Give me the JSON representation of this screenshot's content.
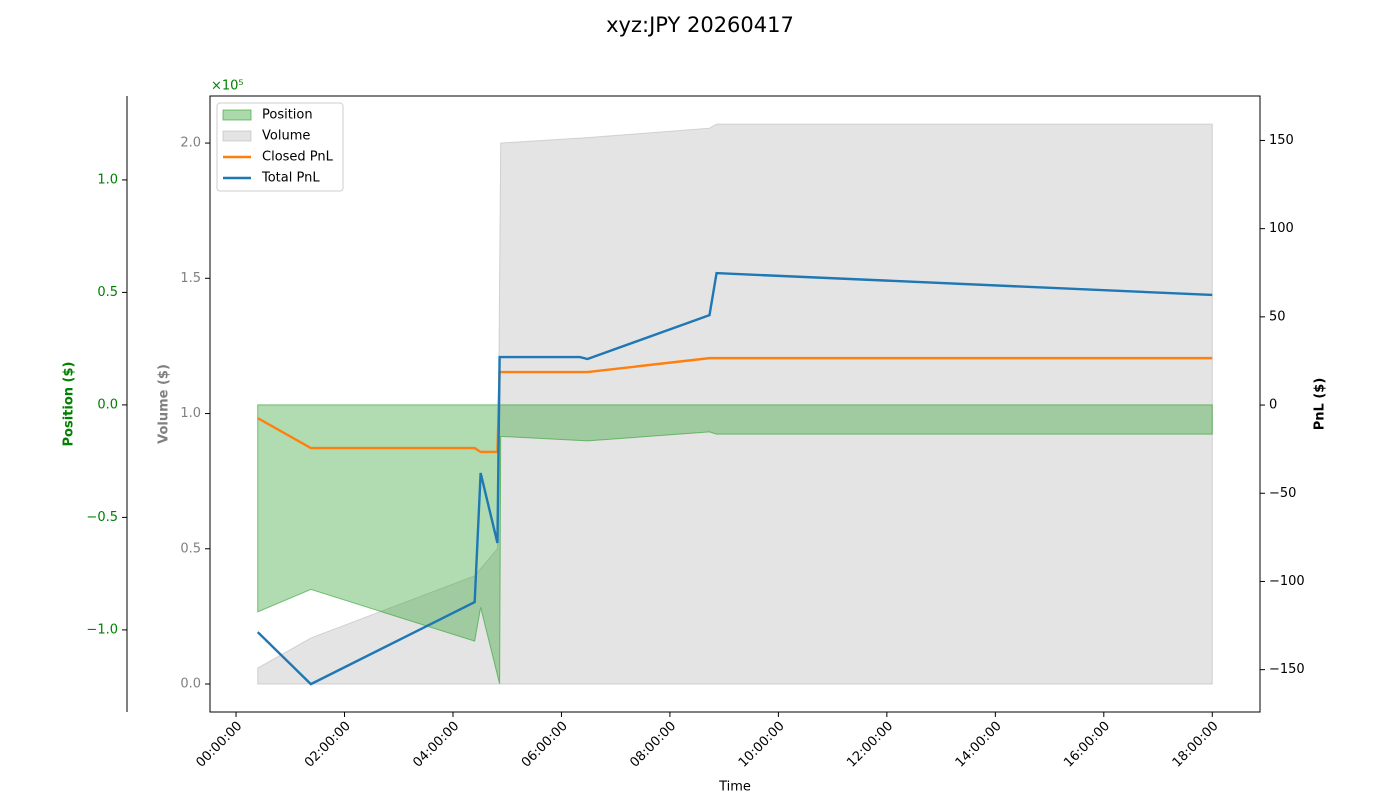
{
  "chart_data": {
    "type": "combo",
    "title": "xyz:JPY 20260417",
    "xlabel": "Time",
    "ylabel": "Position ($)",
    "y2label": "Volume ($)",
    "y3label": "PnL ($)",
    "y_offset_label": "×10⁵",
    "xlim": [
      -0.48,
      18.88
    ],
    "xticks": [
      {
        "value": 0,
        "label": "00:00:00"
      },
      {
        "value": 2,
        "label": "02:00:00"
      },
      {
        "value": 4,
        "label": "04:00:00"
      },
      {
        "value": 6,
        "label": "06:00:00"
      },
      {
        "value": 8,
        "label": "08:00:00"
      },
      {
        "value": 10,
        "label": "10:00:00"
      },
      {
        "value": 12,
        "label": "12:00:00"
      },
      {
        "value": 14,
        "label": "14:00:00"
      },
      {
        "value": 16,
        "label": "16:00:00"
      },
      {
        "value": 18,
        "label": "18:00:00"
      }
    ],
    "ylim": [
      -1.365,
      1.373
    ],
    "yticks": [
      {
        "value": -1.0,
        "label": "−1.0"
      },
      {
        "value": -0.5,
        "label": "−0.5"
      },
      {
        "value": 0,
        "label": "0.0"
      },
      {
        "value": 0.5,
        "label": "0.5"
      },
      {
        "value": 1.0,
        "label": "1.0"
      }
    ],
    "y2lim": [
      -0.1035,
      2.174
    ],
    "y2ticks": [
      {
        "value": 0,
        "label": "0.0"
      },
      {
        "value": 0.5,
        "label": "0.5"
      },
      {
        "value": 1.0,
        "label": "1.0"
      },
      {
        "value": 1.5,
        "label": "1.5"
      },
      {
        "value": 2.0,
        "label": "2.0"
      }
    ],
    "y3lim": [
      -174,
      175.2
    ],
    "y3ticks": [
      {
        "value": -150,
        "label": "−150"
      },
      {
        "value": -100,
        "label": "−100"
      },
      {
        "value": -50,
        "label": "−50"
      },
      0,
      50,
      100,
      150
    ],
    "y_color": "#008000",
    "y2_color": "#808080",
    "legend": "upper left",
    "series": [
      {
        "name": "Volume",
        "kind": "area",
        "axis": "y2",
        "color": "#bbbbbb",
        "x": [
          0.4,
          1.38,
          4.4,
          4.82,
          4.88,
          6.48,
          8.73,
          8.86,
          18
        ],
        "values": [
          0.059,
          0.17,
          0.4,
          0.5,
          2.0,
          2.02,
          2.055,
          2.07,
          2.07
        ]
      },
      {
        "name": "Position",
        "kind": "area",
        "axis": "y",
        "color": "#2ca02c",
        "x": [
          0.4,
          1.38,
          4.4,
          4.51,
          4.86,
          4.88,
          6.48,
          8.73,
          8.86,
          18
        ],
        "values": [
          -0.92,
          -0.82,
          -1.05,
          -0.9,
          -1.24,
          -0.14,
          -0.16,
          -0.12,
          -0.13,
          -0.13
        ]
      },
      {
        "name": "Closed PnL",
        "kind": "line",
        "axis": "y3",
        "color": "#ff7f0e",
        "x": [
          0.4,
          1.38,
          4.4,
          4.51,
          4.82,
          4.86,
          6.48,
          8.73,
          18
        ],
        "values": [
          -7.4,
          -24.4,
          -24.4,
          -26.6,
          -26.6,
          18.7,
          18.7,
          26.6,
          26.6
        ]
      },
      {
        "name": "Total PnL",
        "kind": "line",
        "axis": "y3",
        "color": "#1f77b4",
        "x": [
          0.4,
          1.38,
          4.4,
          4.51,
          4.82,
          4.86,
          6.34,
          6.48,
          8.73,
          8.86,
          18
        ],
        "values": [
          -128.7,
          -158.2,
          -111.7,
          -38.5,
          -78.2,
          27.2,
          27.2,
          26.1,
          51,
          74.8,
          62.4
        ]
      }
    ]
  }
}
